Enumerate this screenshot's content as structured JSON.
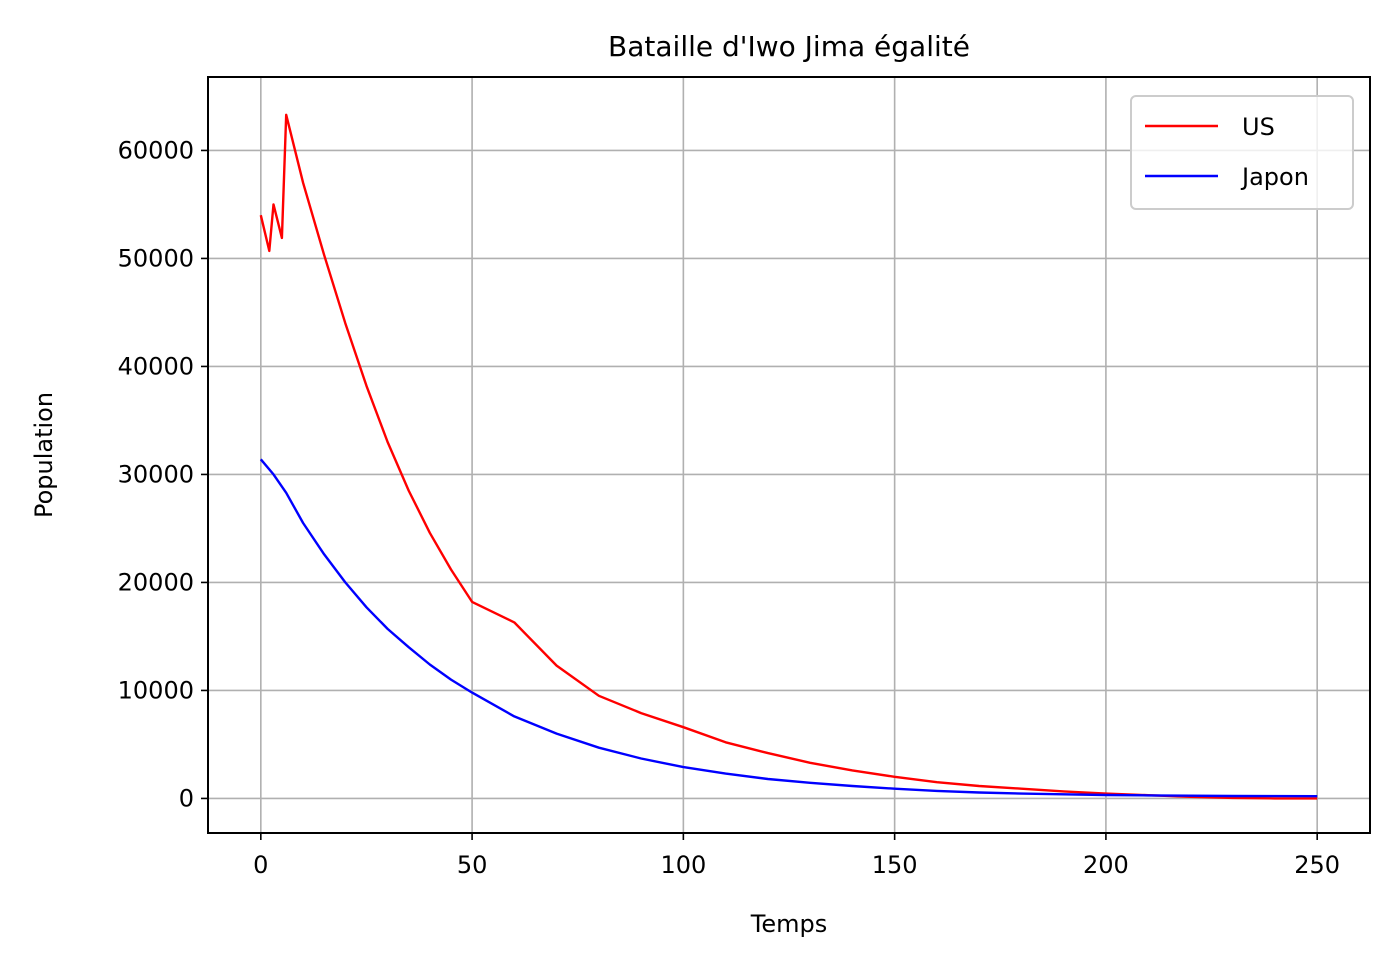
{
  "chart_data": {
    "type": "line",
    "title": "Bataille d'Iwo Jima égalité",
    "xlabel": "Temps",
    "ylabel": "Population",
    "xlim": [
      -12.5,
      262.5
    ],
    "ylim": [
      -3200,
      66800
    ],
    "xticks": [
      0,
      50,
      100,
      150,
      200,
      250
    ],
    "yticks": [
      0,
      10000,
      20000,
      30000,
      40000,
      50000,
      60000
    ],
    "grid": true,
    "legend_position": "top-right",
    "series": [
      {
        "name": "US",
        "color": "#ff0000",
        "x": [
          0,
          2,
          3,
          5,
          6,
          10,
          15,
          20,
          25,
          30,
          35,
          40,
          45,
          50,
          60,
          70,
          80,
          90,
          100,
          110,
          120,
          130,
          140,
          150,
          160,
          170,
          180,
          190,
          200,
          210,
          220,
          230,
          240,
          250
        ],
        "y": [
          54000,
          50700,
          55000,
          51900,
          63300,
          57000,
          50300,
          44000,
          38200,
          33000,
          28500,
          24600,
          21200,
          18200,
          16300,
          12300,
          9500,
          7900,
          6600,
          5200,
          4200,
          3300,
          2600,
          2000,
          1500,
          1150,
          900,
          650,
          450,
          300,
          150,
          50,
          0,
          0
        ]
      },
      {
        "name": "Japon",
        "color": "#0000ff",
        "x": [
          0,
          3,
          6,
          10,
          15,
          20,
          25,
          30,
          35,
          40,
          45,
          50,
          60,
          70,
          80,
          90,
          100,
          110,
          120,
          130,
          140,
          150,
          160,
          170,
          180,
          190,
          200,
          210,
          220,
          230,
          240,
          250
        ],
        "y": [
          31400,
          30000,
          28300,
          25500,
          22600,
          20000,
          17700,
          15700,
          14000,
          12400,
          11000,
          9800,
          7600,
          6000,
          4700,
          3700,
          2900,
          2300,
          1800,
          1450,
          1150,
          900,
          700,
          550,
          450,
          380,
          320,
          280,
          250,
          230,
          220,
          210
        ]
      }
    ]
  }
}
